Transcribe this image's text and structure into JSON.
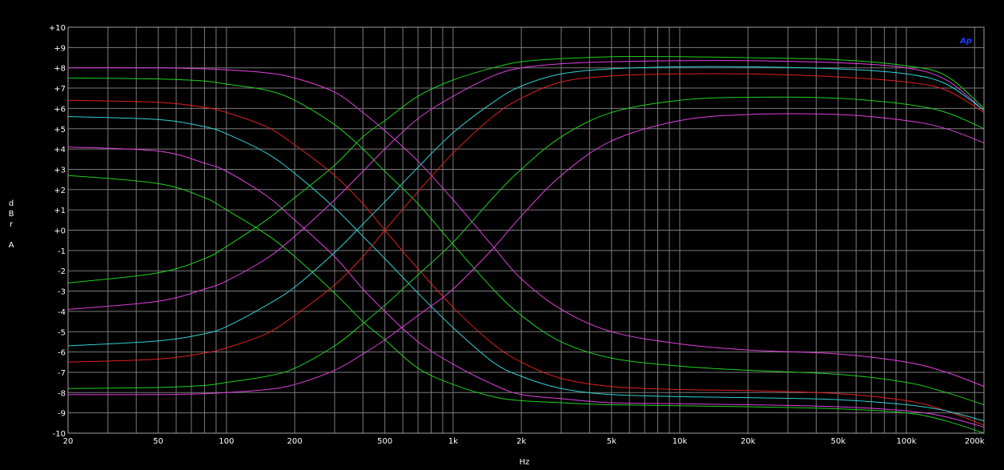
{
  "chart_data": {
    "type": "line",
    "xlabel": "Hz",
    "ylabel_lines": [
      "d",
      "B",
      "r",
      "",
      "A"
    ],
    "logo": "Ap",
    "x_scale": "log",
    "xlim": [
      20,
      220000
    ],
    "ylim": [
      -10,
      10
    ],
    "grid": true,
    "y_ticks": [
      {
        "v": 10,
        "label": "+10"
      },
      {
        "v": 9,
        "label": "+9"
      },
      {
        "v": 8,
        "label": "+8"
      },
      {
        "v": 7,
        "label": "+7"
      },
      {
        "v": 6,
        "label": "+6"
      },
      {
        "v": 5,
        "label": "+5"
      },
      {
        "v": 4,
        "label": "+4"
      },
      {
        "v": 3,
        "label": "+3"
      },
      {
        "v": 2,
        "label": "+2"
      },
      {
        "v": 1,
        "label": "+1"
      },
      {
        "v": 0,
        "label": "+0"
      },
      {
        "v": -1,
        "label": "-1"
      },
      {
        "v": -2,
        "label": "-2"
      },
      {
        "v": -3,
        "label": "-3"
      },
      {
        "v": -4,
        "label": "-4"
      },
      {
        "v": -5,
        "label": "-5"
      },
      {
        "v": -6,
        "label": "-6"
      },
      {
        "v": -7,
        "label": "-7"
      },
      {
        "v": -8,
        "label": "-8"
      },
      {
        "v": -9,
        "label": "-9"
      },
      {
        "v": -10,
        "label": "-10"
      }
    ],
    "x_ticks": [
      {
        "v": 20,
        "label": "20"
      },
      {
        "v": 50,
        "label": "50"
      },
      {
        "v": 100,
        "label": "100"
      },
      {
        "v": 200,
        "label": "200"
      },
      {
        "v": 500,
        "label": "500"
      },
      {
        "v": 1000,
        "label": "1k"
      },
      {
        "v": 2000,
        "label": "2k"
      },
      {
        "v": 5000,
        "label": "5k"
      },
      {
        "v": 10000,
        "label": "10k"
      },
      {
        "v": 20000,
        "label": "20k"
      },
      {
        "v": 50000,
        "label": "50k"
      },
      {
        "v": 100000,
        "label": "100k"
      },
      {
        "v": 200000,
        "label": "200k"
      }
    ],
    "x_minor_grid": [
      20,
      30,
      40,
      50,
      60,
      70,
      80,
      90,
      100,
      200,
      300,
      400,
      500,
      600,
      700,
      800,
      900,
      1000,
      2000,
      3000,
      4000,
      5000,
      6000,
      7000,
      8000,
      9000,
      10000,
      20000,
      30000,
      40000,
      50000,
      60000,
      70000,
      80000,
      90000,
      100000,
      200000
    ],
    "colors": {
      "grid": "#7a7a7a",
      "frame": "#a0a0a0",
      "text": "#ffffff",
      "logo": "#1a3cff",
      "magenta": "#e040e0",
      "green": "#20d020",
      "cyan": "#30d0d0",
      "red": "#e02020"
    },
    "series": [
      {
        "color": "magenta",
        "points": [
          [
            20,
            8.0
          ],
          [
            50,
            8.0
          ],
          [
            80,
            7.95
          ],
          [
            100,
            7.9
          ],
          [
            150,
            7.75
          ],
          [
            200,
            7.5
          ],
          [
            300,
            6.8
          ],
          [
            400,
            5.8
          ],
          [
            500,
            4.9
          ],
          [
            700,
            3.4
          ],
          [
            1000,
            1.5
          ],
          [
            1500,
            -0.8
          ],
          [
            2000,
            -2.4
          ],
          [
            3000,
            -3.9
          ],
          [
            5000,
            -5.0
          ],
          [
            10000,
            -5.6
          ],
          [
            20000,
            -5.9
          ],
          [
            50000,
            -6.1
          ],
          [
            100000,
            -6.5
          ],
          [
            150000,
            -7.0
          ],
          [
            220000,
            -7.7
          ]
        ]
      },
      {
        "color": "green",
        "points": [
          [
            20,
            7.5
          ],
          [
            50,
            7.45
          ],
          [
            80,
            7.35
          ],
          [
            100,
            7.2
          ],
          [
            150,
            6.9
          ],
          [
            200,
            6.4
          ],
          [
            300,
            5.2
          ],
          [
            400,
            4.0
          ],
          [
            500,
            2.9
          ],
          [
            700,
            1.3
          ],
          [
            1000,
            -0.7
          ],
          [
            1500,
            -2.9
          ],
          [
            2000,
            -4.2
          ],
          [
            3000,
            -5.5
          ],
          [
            5000,
            -6.3
          ],
          [
            10000,
            -6.7
          ],
          [
            20000,
            -6.9
          ],
          [
            50000,
            -7.1
          ],
          [
            100000,
            -7.5
          ],
          [
            150000,
            -8.0
          ],
          [
            220000,
            -8.6
          ]
        ]
      },
      {
        "color": "red",
        "points": [
          [
            20,
            6.4
          ],
          [
            50,
            6.3
          ],
          [
            80,
            6.05
          ],
          [
            100,
            5.8
          ],
          [
            150,
            5.1
          ],
          [
            200,
            4.2
          ],
          [
            300,
            2.7
          ],
          [
            400,
            1.3
          ],
          [
            500,
            0.0
          ],
          [
            700,
            -1.9
          ],
          [
            1000,
            -3.8
          ],
          [
            1500,
            -5.6
          ],
          [
            2000,
            -6.5
          ],
          [
            3000,
            -7.3
          ],
          [
            5000,
            -7.7
          ],
          [
            10000,
            -7.85
          ],
          [
            20000,
            -7.9
          ],
          [
            50000,
            -8.05
          ],
          [
            100000,
            -8.4
          ],
          [
            150000,
            -8.9
          ],
          [
            220000,
            -9.6
          ]
        ]
      },
      {
        "color": "cyan",
        "points": [
          [
            20,
            5.6
          ],
          [
            50,
            5.45
          ],
          [
            80,
            5.1
          ],
          [
            100,
            4.75
          ],
          [
            150,
            3.8
          ],
          [
            200,
            2.8
          ],
          [
            300,
            1.1
          ],
          [
            400,
            -0.3
          ],
          [
            500,
            -1.4
          ],
          [
            700,
            -3.1
          ],
          [
            1000,
            -4.8
          ],
          [
            1500,
            -6.5
          ],
          [
            2000,
            -7.2
          ],
          [
            3000,
            -7.8
          ],
          [
            5000,
            -8.1
          ],
          [
            10000,
            -8.2
          ],
          [
            20000,
            -8.25
          ],
          [
            50000,
            -8.35
          ],
          [
            100000,
            -8.6
          ],
          [
            150000,
            -8.9
          ],
          [
            220000,
            -9.4
          ]
        ]
      },
      {
        "color": "magenta",
        "points": [
          [
            20,
            4.1
          ],
          [
            50,
            3.9
          ],
          [
            80,
            3.3
          ],
          [
            100,
            2.9
          ],
          [
            150,
            1.7
          ],
          [
            200,
            0.5
          ],
          [
            300,
            -1.3
          ],
          [
            400,
            -2.9
          ],
          [
            500,
            -4.0
          ],
          [
            700,
            -5.5
          ],
          [
            1000,
            -6.6
          ],
          [
            1500,
            -7.6
          ],
          [
            2000,
            -8.1
          ],
          [
            3000,
            -8.3
          ],
          [
            5000,
            -8.5
          ],
          [
            10000,
            -8.55
          ],
          [
            20000,
            -8.6
          ],
          [
            50000,
            -8.7
          ],
          [
            100000,
            -8.9
          ],
          [
            150000,
            -9.2
          ],
          [
            220000,
            -9.7
          ]
        ]
      },
      {
        "color": "green",
        "points": [
          [
            20,
            2.7
          ],
          [
            50,
            2.3
          ],
          [
            80,
            1.6
          ],
          [
            100,
            1.0
          ],
          [
            150,
            -0.2
          ],
          [
            200,
            -1.3
          ],
          [
            300,
            -3.1
          ],
          [
            400,
            -4.5
          ],
          [
            500,
            -5.4
          ],
          [
            700,
            -6.8
          ],
          [
            1000,
            -7.6
          ],
          [
            1500,
            -8.2
          ],
          [
            2000,
            -8.4
          ],
          [
            3000,
            -8.5
          ],
          [
            5000,
            -8.6
          ],
          [
            10000,
            -8.65
          ],
          [
            20000,
            -8.7
          ],
          [
            50000,
            -8.8
          ],
          [
            100000,
            -9.0
          ],
          [
            150000,
            -9.4
          ],
          [
            220000,
            -10.0
          ]
        ]
      },
      {
        "color": "green",
        "points": [
          [
            20,
            -2.6
          ],
          [
            50,
            -2.1
          ],
          [
            80,
            -1.4
          ],
          [
            100,
            -0.8
          ],
          [
            150,
            0.5
          ],
          [
            200,
            1.6
          ],
          [
            300,
            3.2
          ],
          [
            400,
            4.6
          ],
          [
            500,
            5.4
          ],
          [
            700,
            6.6
          ],
          [
            1000,
            7.4
          ],
          [
            1500,
            8.0
          ],
          [
            2000,
            8.3
          ],
          [
            3000,
            8.45
          ],
          [
            5000,
            8.55
          ],
          [
            10000,
            8.55
          ],
          [
            20000,
            8.5
          ],
          [
            50000,
            8.4
          ],
          [
            100000,
            8.1
          ],
          [
            150000,
            7.6
          ],
          [
            220000,
            6.0
          ]
        ]
      },
      {
        "color": "magenta",
        "points": [
          [
            20,
            -3.9
          ],
          [
            50,
            -3.5
          ],
          [
            80,
            -2.9
          ],
          [
            100,
            -2.5
          ],
          [
            150,
            -1.4
          ],
          [
            200,
            -0.3
          ],
          [
            300,
            1.5
          ],
          [
            400,
            2.9
          ],
          [
            500,
            4.0
          ],
          [
            700,
            5.5
          ],
          [
            1000,
            6.6
          ],
          [
            1500,
            7.6
          ],
          [
            2000,
            8.0
          ],
          [
            3000,
            8.2
          ],
          [
            5000,
            8.3
          ],
          [
            10000,
            8.35
          ],
          [
            20000,
            8.35
          ],
          [
            50000,
            8.25
          ],
          [
            100000,
            8.0
          ],
          [
            150000,
            7.4
          ],
          [
            220000,
            5.9
          ]
        ]
      },
      {
        "color": "cyan",
        "points": [
          [
            20,
            -5.7
          ],
          [
            50,
            -5.45
          ],
          [
            80,
            -5.1
          ],
          [
            100,
            -4.75
          ],
          [
            150,
            -3.7
          ],
          [
            200,
            -2.8
          ],
          [
            300,
            -1.1
          ],
          [
            400,
            0.3
          ],
          [
            500,
            1.4
          ],
          [
            700,
            3.1
          ],
          [
            1000,
            4.8
          ],
          [
            1500,
            6.3
          ],
          [
            2000,
            7.1
          ],
          [
            3000,
            7.7
          ],
          [
            5000,
            7.95
          ],
          [
            10000,
            8.05
          ],
          [
            20000,
            8.05
          ],
          [
            50000,
            7.95
          ],
          [
            100000,
            7.7
          ],
          [
            150000,
            7.2
          ],
          [
            220000,
            5.9
          ]
        ]
      },
      {
        "color": "red",
        "points": [
          [
            20,
            -6.5
          ],
          [
            50,
            -6.35
          ],
          [
            80,
            -6.05
          ],
          [
            100,
            -5.8
          ],
          [
            150,
            -5.1
          ],
          [
            200,
            -4.2
          ],
          [
            300,
            -2.7
          ],
          [
            400,
            -1.3
          ],
          [
            500,
            0.0
          ],
          [
            700,
            1.9
          ],
          [
            1000,
            3.8
          ],
          [
            1500,
            5.6
          ],
          [
            2000,
            6.5
          ],
          [
            3000,
            7.3
          ],
          [
            5000,
            7.6
          ],
          [
            10000,
            7.7
          ],
          [
            20000,
            7.7
          ],
          [
            50000,
            7.55
          ],
          [
            100000,
            7.3
          ],
          [
            150000,
            6.9
          ],
          [
            220000,
            5.8
          ]
        ]
      },
      {
        "color": "green",
        "points": [
          [
            20,
            -7.8
          ],
          [
            50,
            -7.75
          ],
          [
            80,
            -7.65
          ],
          [
            100,
            -7.5
          ],
          [
            150,
            -7.2
          ],
          [
            200,
            -6.8
          ],
          [
            300,
            -5.7
          ],
          [
            400,
            -4.6
          ],
          [
            500,
            -3.7
          ],
          [
            700,
            -2.2
          ],
          [
            1000,
            -0.6
          ],
          [
            1500,
            1.6
          ],
          [
            2000,
            3.0
          ],
          [
            3000,
            4.6
          ],
          [
            5000,
            5.8
          ],
          [
            10000,
            6.4
          ],
          [
            20000,
            6.55
          ],
          [
            50000,
            6.5
          ],
          [
            100000,
            6.2
          ],
          [
            150000,
            5.8
          ],
          [
            220000,
            5.0
          ]
        ]
      },
      {
        "color": "magenta",
        "points": [
          [
            20,
            -8.1
          ],
          [
            50,
            -8.1
          ],
          [
            80,
            -8.05
          ],
          [
            100,
            -8.0
          ],
          [
            150,
            -7.85
          ],
          [
            200,
            -7.6
          ],
          [
            300,
            -6.9
          ],
          [
            400,
            -6.1
          ],
          [
            500,
            -5.4
          ],
          [
            700,
            -4.2
          ],
          [
            1000,
            -2.9
          ],
          [
            1500,
            -0.9
          ],
          [
            2000,
            0.7
          ],
          [
            3000,
            2.7
          ],
          [
            5000,
            4.4
          ],
          [
            10000,
            5.4
          ],
          [
            20000,
            5.7
          ],
          [
            50000,
            5.7
          ],
          [
            100000,
            5.4
          ],
          [
            150000,
            5.0
          ],
          [
            220000,
            4.3
          ]
        ]
      }
    ]
  }
}
